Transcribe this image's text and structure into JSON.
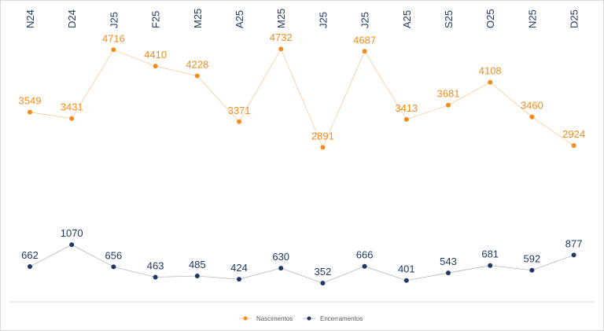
{
  "chart_data": {
    "type": "line",
    "title": "",
    "categories": [
      "N24",
      "D24",
      "J25",
      "F25",
      "M25",
      "A25",
      "M25",
      "J25",
      "J25",
      "A25",
      "S25",
      "O25",
      "N25",
      "D25"
    ],
    "series": [
      {
        "name": "Nascimentos",
        "color": "#f28c1c",
        "values": [
          3549,
          3431,
          4716,
          4410,
          4228,
          3371,
          4732,
          2891,
          4687,
          3413,
          3681,
          4108,
          3460,
          2924
        ]
      },
      {
        "name": "Encerramentos",
        "color": "#1f3864",
        "values": [
          662,
          1070,
          656,
          463,
          485,
          424,
          630,
          352,
          666,
          401,
          543,
          681,
          592,
          877
        ]
      }
    ],
    "xlabel": "",
    "ylabel": "",
    "ylim": [
      0,
      4732
    ],
    "grid": false,
    "legend_position": "bottom-center"
  }
}
